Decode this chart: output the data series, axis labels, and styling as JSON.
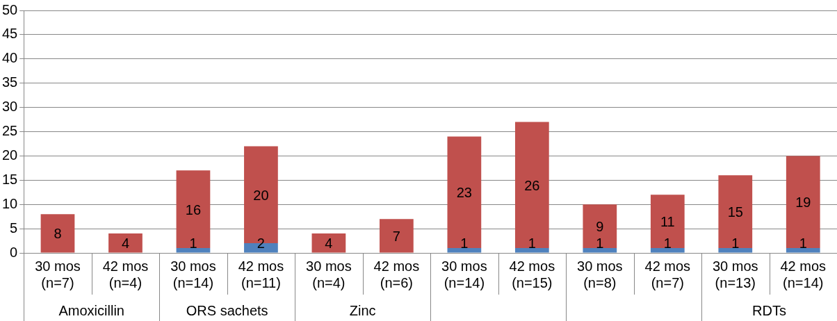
{
  "chart_data": {
    "type": "bar",
    "stacked": true,
    "categories": [
      "30 mos (n=7)",
      "42 mos (n=4)",
      "30 mos (n=14)",
      "42 mos (n=11)",
      "30 mos (n=4)",
      "42 mos (n=6)",
      "30 mos (n=14)",
      "42 mos (n=15)",
      "30 mos (n=8)",
      "42 mos (n=7)",
      "30 mos (n=13)",
      "42 mos (n=14)"
    ],
    "series": [
      {
        "color": "#4f81bd",
        "values": [
          0,
          0,
          1,
          2,
          0,
          0,
          1,
          1,
          1,
          1,
          1,
          1
        ],
        "value_labels": [
          null,
          null,
          "1",
          "2",
          null,
          null,
          "1",
          "1",
          "1",
          "1",
          "1",
          "1"
        ]
      },
      {
        "color": "#c0504d",
        "values": [
          8,
          4,
          16,
          20,
          4,
          7,
          23,
          26,
          9,
          11,
          15,
          19
        ],
        "value_labels": [
          "8",
          "4",
          "16",
          "20",
          "4",
          "7",
          "23",
          "26",
          "9",
          "11",
          "15",
          "19"
        ]
      }
    ],
    "ylim": [
      0,
      50
    ],
    "yticks": [
      0,
      5,
      10,
      15,
      20,
      25,
      30,
      35,
      40,
      45,
      50
    ],
    "grid": "y",
    "legend": false,
    "annotations": [
      "Amoxicillin",
      "ORS sachets",
      "Zinc",
      "RDTs"
    ]
  }
}
